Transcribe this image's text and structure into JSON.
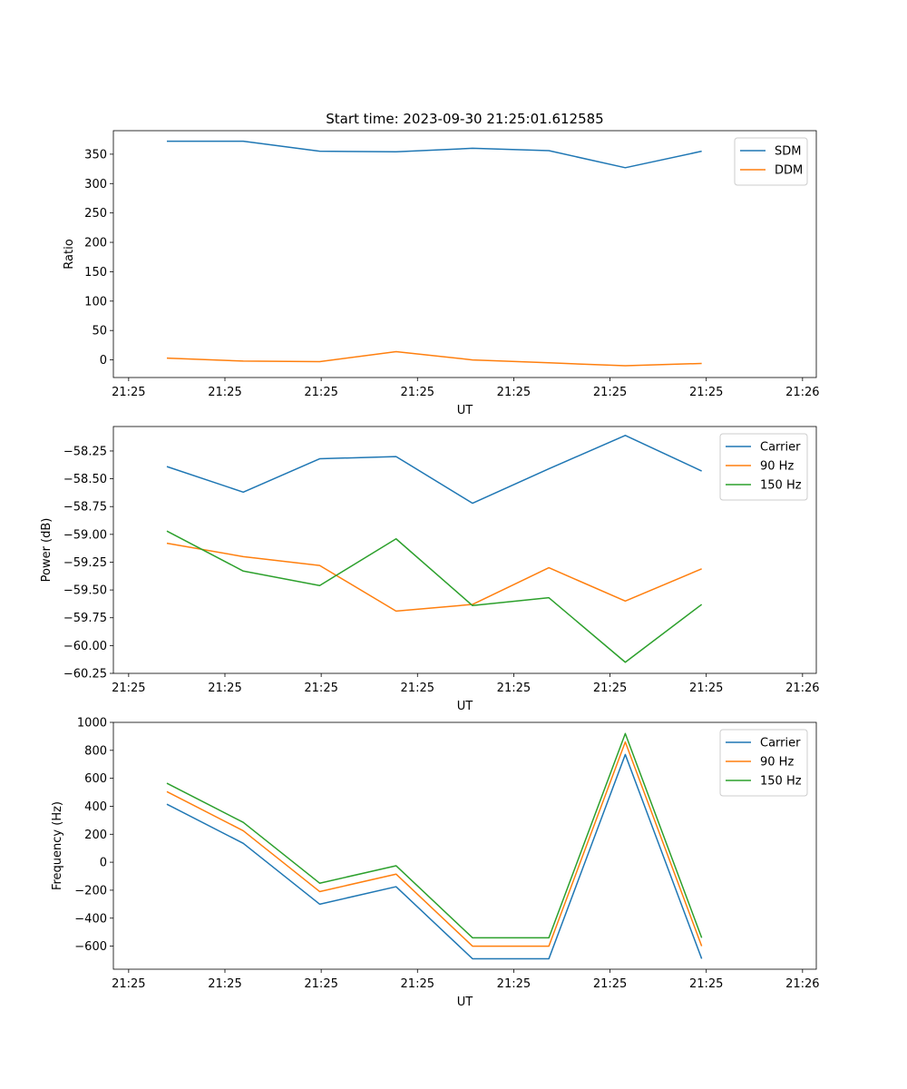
{
  "figure_title": "Start time: 2023-09-30 21:25:01.612585",
  "colors": {
    "c0": "#1f77b4",
    "c1": "#ff7f0e",
    "c2": "#2ca02c"
  },
  "chart_data": [
    {
      "type": "line",
      "xlabel": "UT",
      "ylabel": "Ratio",
      "x_tick_labels": [
        "21:25",
        "21:25",
        "21:25",
        "21:25",
        "21:25",
        "21:25",
        "21:25"
      ],
      "x_tick_last": "21:26",
      "xlim": [
        -0.2,
        9.0
      ],
      "x": [
        0.5,
        1.5,
        2.5,
        3.5,
        4.5,
        5.5,
        6.5,
        7.5
      ],
      "ylim": [
        -30,
        390
      ],
      "yticks": [
        0,
        50,
        100,
        150,
        200,
        250,
        300,
        350
      ],
      "legend_location": "top-right",
      "series": [
        {
          "name": "SDM",
          "values": [
            372,
            372,
            355,
            354,
            360,
            356,
            327,
            355
          ]
        },
        {
          "name": "DDM",
          "values": [
            3,
            -2,
            -3,
            14,
            0,
            -5,
            -10,
            -6
          ]
        }
      ]
    },
    {
      "type": "line",
      "xlabel": "UT",
      "ylabel": "Power (dB)",
      "x_tick_labels": [
        "21:25",
        "21:25",
        "21:25",
        "21:25",
        "21:25",
        "21:25",
        "21:25"
      ],
      "x_tick_last": "21:26",
      "xlim": [
        -0.2,
        9.0
      ],
      "x": [
        0.5,
        1.5,
        2.5,
        3.5,
        4.5,
        5.5,
        6.5,
        7.5
      ],
      "ylim": [
        -60.25,
        -58.03
      ],
      "yticks": [
        -60.25,
        -60.0,
        -59.75,
        -59.5,
        -59.25,
        -59.0,
        -58.75,
        -58.5,
        -58.25
      ],
      "ytick_labels": [
        "−60.25",
        "−60.00",
        "−59.75",
        "−59.50",
        "−59.25",
        "−59.00",
        "−58.75",
        "−58.50",
        "−58.25"
      ],
      "legend_location": "top-right",
      "series": [
        {
          "name": "Carrier",
          "values": [
            -58.39,
            -58.62,
            -58.32,
            -58.3,
            -58.72,
            -58.41,
            -58.11,
            -58.43
          ]
        },
        {
          "name": "90 Hz",
          "values": [
            -59.08,
            -59.2,
            -59.28,
            -59.69,
            -59.63,
            -59.3,
            -59.6,
            -59.31
          ]
        },
        {
          "name": "150 Hz",
          "values": [
            -58.97,
            -59.33,
            -59.46,
            -59.04,
            -59.64,
            -59.57,
            -60.15,
            -59.63
          ]
        }
      ]
    },
    {
      "type": "line",
      "xlabel": "UT",
      "ylabel": "Frequency (Hz)",
      "x_tick_labels": [
        "21:25",
        "21:25",
        "21:25",
        "21:25",
        "21:25",
        "21:25",
        "21:25"
      ],
      "x_tick_last": "21:26",
      "xlim": [
        -0.2,
        9.0
      ],
      "x": [
        0.5,
        1.5,
        2.5,
        3.5,
        4.5,
        5.5,
        6.5,
        7.5
      ],
      "ylim": [
        -765,
        1000
      ],
      "yticks": [
        -600,
        -400,
        -200,
        0,
        200,
        400,
        600,
        800,
        1000
      ],
      "ytick_labels": [
        "−600",
        "−400",
        "−200",
        "0",
        "200",
        "400",
        "600",
        "800",
        "1000"
      ],
      "legend_location": "top-right",
      "series": [
        {
          "name": "Carrier",
          "values": [
            415,
            135,
            -300,
            -175,
            -690,
            -690,
            770,
            -690
          ]
        },
        {
          "name": "90 Hz",
          "values": [
            505,
            225,
            -210,
            -85,
            -600,
            -600,
            860,
            -600
          ]
        },
        {
          "name": "150 Hz",
          "values": [
            565,
            285,
            -150,
            -25,
            -540,
            -540,
            920,
            -540
          ]
        }
      ]
    }
  ]
}
